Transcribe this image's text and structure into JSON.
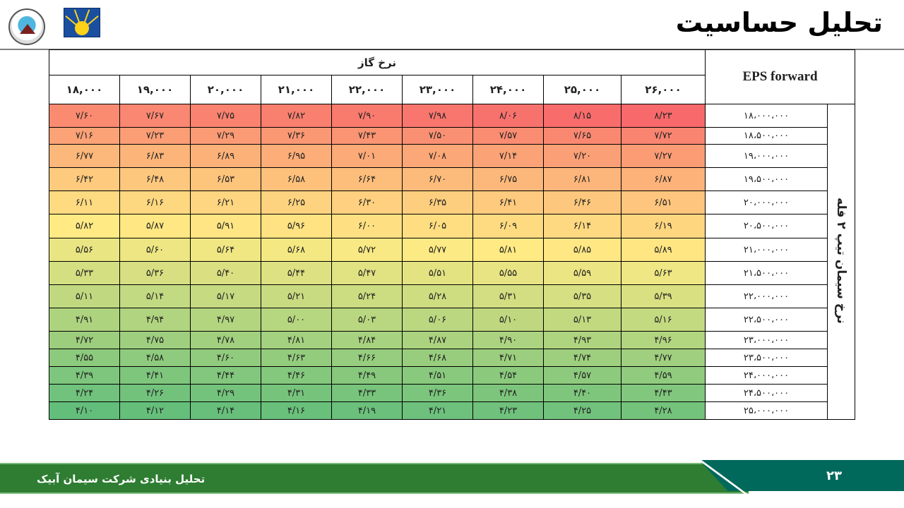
{
  "header": {
    "title": "تحلیل حساسیت"
  },
  "table": {
    "corner_label": "EPS forward",
    "column_group_label": "نرخ گاز",
    "row_group_label": "نرخ سیمان تیپ ۲ فله",
    "columns": [
      "۱۸,۰۰۰",
      "۱۹,۰۰۰",
      "۲۰,۰۰۰",
      "۲۱,۰۰۰",
      "۲۲,۰۰۰",
      "۲۳,۰۰۰",
      "۲۴,۰۰۰",
      "۲۵,۰۰۰",
      "۲۶,۰۰۰"
    ],
    "rows": [
      {
        "label": "۱۸،۰۰۰،۰۰۰",
        "cells": [
          "۷/۶۰",
          "۷/۶۷",
          "۷/۷۵",
          "۷/۸۲",
          "۷/۹۰",
          "۷/۹۸",
          "۸/۰۶",
          "۸/۱۵",
          "۸/۲۳"
        ]
      },
      {
        "label": "۱۸،۵۰۰،۰۰۰",
        "cells": [
          "۷/۱۶",
          "۷/۲۳",
          "۷/۲۹",
          "۷/۳۶",
          "۷/۴۳",
          "۷/۵۰",
          "۷/۵۷",
          "۷/۶۵",
          "۷/۷۲"
        ]
      },
      {
        "label": "۱۹،۰۰۰،۰۰۰",
        "cells": [
          "۶/۷۷",
          "۶/۸۳",
          "۶/۸۹",
          "۶/۹۵",
          "۷/۰۱",
          "۷/۰۸",
          "۷/۱۴",
          "۷/۲۰",
          "۷/۲۷"
        ]
      },
      {
        "label": "۱۹،۵۰۰،۰۰۰",
        "cells": [
          "۶/۴۲",
          "۶/۴۸",
          "۶/۵۳",
          "۶/۵۸",
          "۶/۶۴",
          "۶/۷۰",
          "۶/۷۵",
          "۶/۸۱",
          "۶/۸۷"
        ]
      },
      {
        "label": "۲۰،۰۰۰،۰۰۰",
        "cells": [
          "۶/۱۱",
          "۶/۱۶",
          "۶/۲۱",
          "۶/۲۵",
          "۶/۳۰",
          "۶/۳۵",
          "۶/۴۱",
          "۶/۴۶",
          "۶/۵۱"
        ]
      },
      {
        "label": "۲۰،۵۰۰،۰۰۰",
        "cells": [
          "۵/۸۲",
          "۵/۸۷",
          "۵/۹۱",
          "۵/۹۶",
          "۶/۰۰",
          "۶/۰۵",
          "۶/۰۹",
          "۶/۱۴",
          "۶/۱۹"
        ]
      },
      {
        "label": "۲۱،۰۰۰،۰۰۰",
        "cells": [
          "۵/۵۶",
          "۵/۶۰",
          "۵/۶۴",
          "۵/۶۸",
          "۵/۷۲",
          "۵/۷۷",
          "۵/۸۱",
          "۵/۸۵",
          "۵/۸۹"
        ]
      },
      {
        "label": "۲۱،۵۰۰،۰۰۰",
        "cells": [
          "۵/۳۳",
          "۵/۳۶",
          "۵/۴۰",
          "۵/۴۴",
          "۵/۴۷",
          "۵/۵۱",
          "۵/۵۵",
          "۵/۵۹",
          "۵/۶۳"
        ]
      },
      {
        "label": "۲۲،۰۰۰،۰۰۰",
        "cells": [
          "۵/۱۱",
          "۵/۱۴",
          "۵/۱۷",
          "۵/۲۱",
          "۵/۲۴",
          "۵/۲۸",
          "۵/۳۱",
          "۵/۳۵",
          "۵/۳۹"
        ]
      },
      {
        "label": "۲۲،۵۰۰،۰۰۰",
        "cells": [
          "۴/۹۱",
          "۴/۹۴",
          "۴/۹۷",
          "۵/۰۰",
          "۵/۰۳",
          "۵/۰۶",
          "۵/۱۰",
          "۵/۱۳",
          "۵/۱۶"
        ]
      },
      {
        "label": "۲۳،۰۰۰،۰۰۰",
        "cells": [
          "۴/۷۲",
          "۴/۷۵",
          "۴/۷۸",
          "۴/۸۱",
          "۴/۸۴",
          "۴/۸۷",
          "۴/۹۰",
          "۴/۹۳",
          "۴/۹۶"
        ]
      },
      {
        "label": "۲۳،۵۰۰،۰۰۰",
        "cells": [
          "۴/۵۵",
          "۴/۵۸",
          "۴/۶۰",
          "۴/۶۳",
          "۴/۶۶",
          "۴/۶۸",
          "۴/۷۱",
          "۴/۷۴",
          "۴/۷۷"
        ]
      },
      {
        "label": "۲۴،۰۰۰،۰۰۰",
        "cells": [
          "۴/۳۹",
          "۴/۴۱",
          "۴/۴۴",
          "۴/۴۶",
          "۴/۴۹",
          "۴/۵۱",
          "۴/۵۴",
          "۴/۵۷",
          "۴/۵۹"
        ]
      },
      {
        "label": "۲۴،۵۰۰،۰۰۰",
        "cells": [
          "۴/۲۴",
          "۴/۲۶",
          "۴/۲۹",
          "۴/۳۱",
          "۴/۳۳",
          "۴/۳۶",
          "۴/۳۸",
          "۴/۴۰",
          "۴/۴۳"
        ]
      },
      {
        "label": "۲۵،۰۰۰،۰۰۰",
        "cells": [
          "۴/۱۰",
          "۴/۱۲",
          "۴/۱۴",
          "۴/۱۶",
          "۴/۱۹",
          "۴/۲۱",
          "۴/۲۳",
          "۴/۲۵",
          "۴/۲۸"
        ]
      }
    ],
    "color_scale": {
      "high": "#f8696b",
      "mid": "#ffeb84",
      "low": "#63be7b"
    }
  },
  "footer": {
    "text": "تحلیل بنیادی شرکت سیمان آبیک",
    "page_number": "۲۳"
  }
}
